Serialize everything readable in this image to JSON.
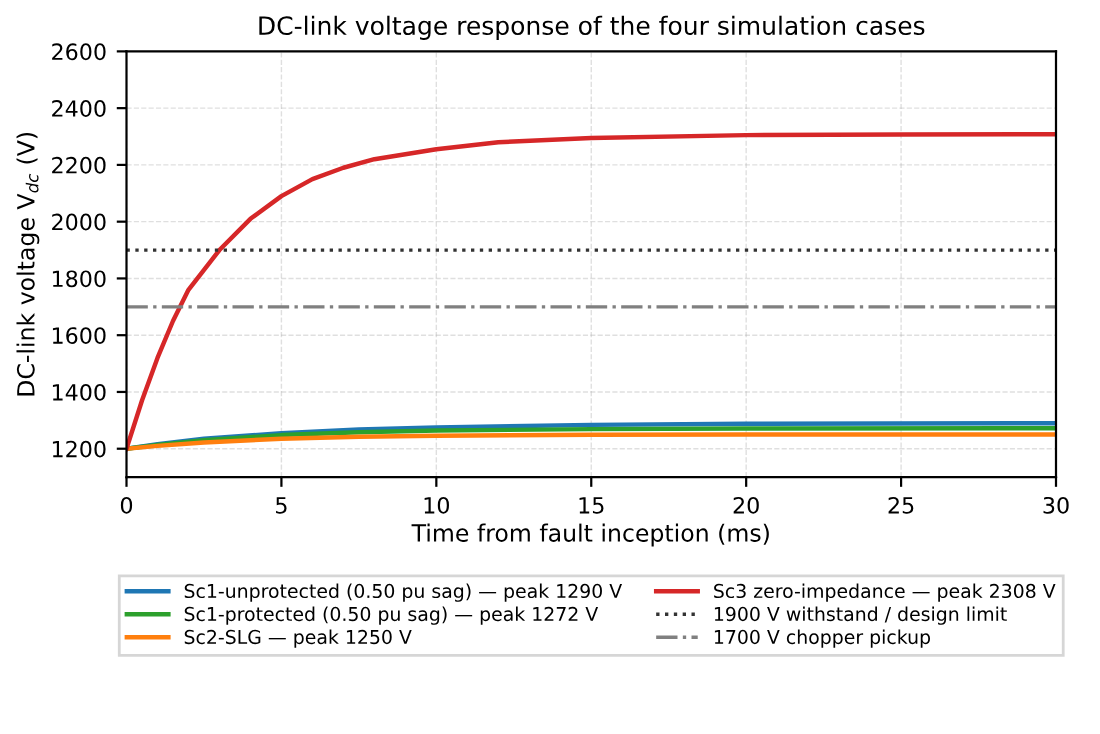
{
  "chart_data": {
    "type": "line",
    "title": "DC-link voltage response of the four simulation cases",
    "xlabel": "Time from fault inception (ms)",
    "ylabel": "DC-link voltage V$_{dc}$ (V)",
    "xlim": [
      0,
      30
    ],
    "xticks": [
      0,
      5,
      10,
      15,
      20,
      25,
      30
    ],
    "ylim": [
      1100,
      2600
    ],
    "yticks": [
      1200,
      1400,
      1600,
      1800,
      2000,
      2200,
      2400,
      2600
    ],
    "grid": true,
    "legend": "bottom",
    "line_style": "solid",
    "series": [
      {
        "name": "Sc1-unprotected (0.50 pu sag) — peak 1290 V",
        "color": "#1f77b4",
        "x": [
          0,
          1,
          2.5,
          5,
          7.5,
          10,
          15,
          20,
          30
        ],
        "values": [
          1200,
          1216,
          1235,
          1255,
          1268,
          1275,
          1284,
          1288,
          1290
        ]
      },
      {
        "name": "Sc1-protected (0.50 pu sag) — peak 1272 V",
        "color": "#2ca02c",
        "x": [
          0,
          1,
          2.5,
          5,
          7.5,
          10,
          15,
          20,
          30
        ],
        "values": [
          1200,
          1213,
          1230,
          1248,
          1258,
          1264,
          1269,
          1271,
          1272
        ]
      },
      {
        "name": "Sc2-SLG — peak 1250 V",
        "color": "#ff7f0e",
        "x": [
          0,
          1,
          2.5,
          5,
          7.5,
          10,
          15,
          20,
          30
        ],
        "values": [
          1200,
          1210,
          1222,
          1235,
          1242,
          1246,
          1249,
          1250,
          1250
        ]
      },
      {
        "name": "Sc3 zero-impedance — peak 2308 V",
        "color": "#d62728",
        "x": [
          0,
          0.5,
          1,
          1.5,
          2,
          3,
          4,
          5,
          6,
          7,
          8,
          10,
          12,
          15,
          20,
          25,
          30
        ],
        "values": [
          1200,
          1370,
          1520,
          1650,
          1760,
          1900,
          2010,
          2090,
          2150,
          2190,
          2220,
          2255,
          2280,
          2295,
          2305,
          2307,
          2308
        ]
      }
    ],
    "ref_lines": [
      {
        "axis": "y",
        "value": 1900,
        "label": "1900 V withstand / design limit",
        "color": "#333333",
        "line_style": "dotted"
      },
      {
        "axis": "y",
        "value": 1700,
        "label": "1700 V chopper pickup",
        "color": "#808080",
        "line_style": "dashdot"
      }
    ]
  }
}
